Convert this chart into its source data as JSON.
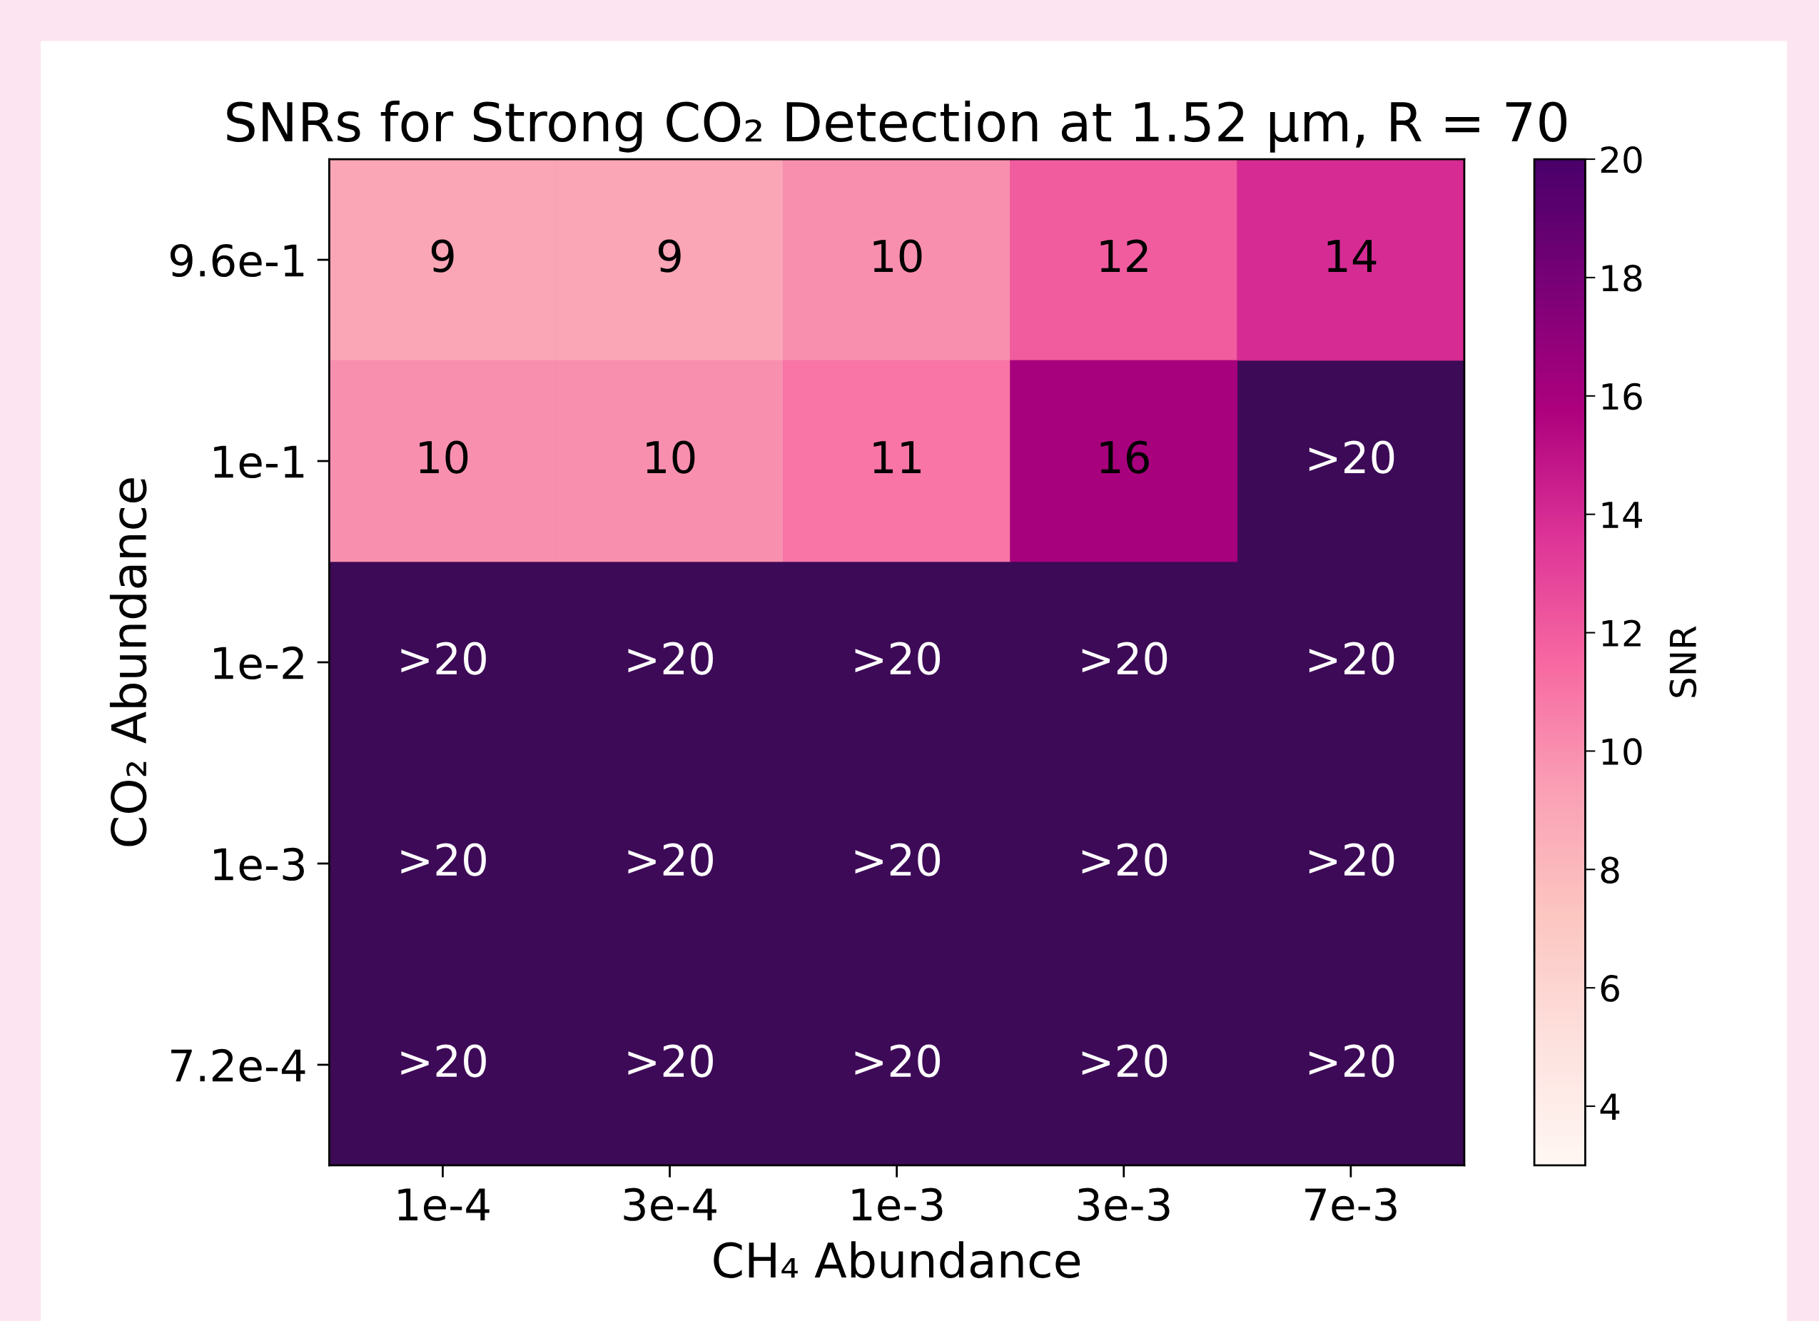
{
  "chart_data": {
    "type": "heatmap",
    "title": "SNRs for Strong CO₂ Detection at 1.52 μm, R = 70",
    "xlabel": "CH₄ Abundance",
    "ylabel": "CO₂ Abundance",
    "clabel": "SNR",
    "categories": [
      "1e-4",
      "3e-4",
      "1e-3",
      "3e-3",
      "7e-3"
    ],
    "y_categories": [
      "9.6e-1",
      "1e-1",
      "1e-2",
      "1e-3",
      "7.2e-4"
    ],
    "cells": [
      [
        9,
        9,
        10,
        12,
        14
      ],
      [
        10,
        10,
        11,
        16,
        null
      ],
      [
        null,
        null,
        null,
        null,
        null
      ],
      [
        null,
        null,
        null,
        null,
        null
      ],
      [
        null,
        null,
        null,
        null,
        null
      ]
    ],
    "cell_labels": [
      [
        "9",
        "9",
        "10",
        "12",
        "14"
      ],
      [
        "10",
        "10",
        "11",
        "16",
        ">20"
      ],
      [
        ">20",
        ">20",
        ">20",
        ">20",
        ">20"
      ],
      [
        ">20",
        ">20",
        ">20",
        ">20",
        ">20"
      ],
      [
        ">20",
        ">20",
        ">20",
        ">20",
        ">20"
      ]
    ],
    "clim": [
      3,
      20
    ],
    "cticks": [
      4,
      6,
      8,
      10,
      12,
      14,
      16,
      18,
      20
    ],
    "grid": false
  }
}
